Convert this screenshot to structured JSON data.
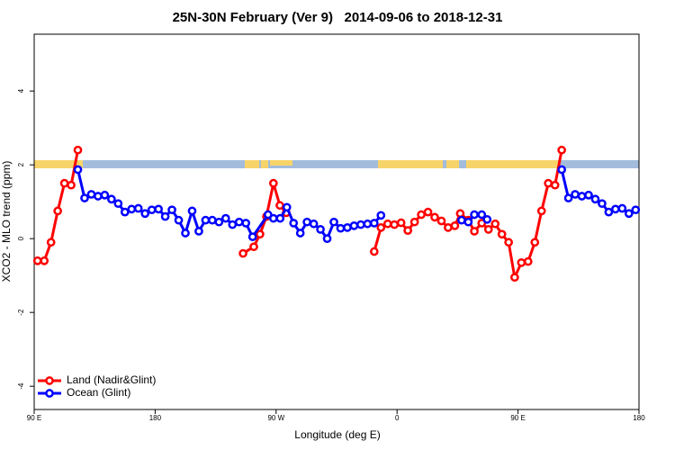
{
  "chart_data": {
    "type": "line",
    "title": "25N-30N February (Ver 9)   2014-09-06 to 2018-12-31",
    "x_label": "Longitude (deg E)",
    "y_label": "XCO2 - MLO trend (ppm)",
    "xlim": [
      90,
      540
    ],
    "ylim": [
      -4.63,
      5.54
    ],
    "xticks": [
      {
        "value": 90,
        "label": "90 E"
      },
      180,
      {
        "value": 270,
        "label": "90 W"
      },
      {
        "value": 360,
        "label": "0"
      },
      {
        "value": 450,
        "label": "90 E"
      },
      {
        "value": 540,
        "label": "180"
      }
    ],
    "yticks": [
      -4,
      -2,
      0,
      2,
      4
    ],
    "legend": "bottom-left",
    "series": [
      {
        "name": "Land (Nadir&Glint)",
        "color": "#ff0000",
        "x": [
          92.5,
          97.5,
          102.5,
          107.5,
          112.5,
          117.5,
          122.5,
          null,
          245.4,
          253.4,
          258,
          262.8,
          268,
          272.8,
          277.5,
          null,
          343,
          348,
          353,
          358,
          363,
          368,
          373,
          378,
          383,
          388,
          393,
          398,
          403,
          407,
          413,
          417.5,
          423,
          428,
          433,
          438,
          443,
          447.5,
          452.5,
          457.5,
          462.5,
          467.5,
          472.5,
          477.5,
          482.5
        ],
        "values": [
          -0.6,
          -0.6,
          -0.1,
          0.75,
          1.5,
          1.45,
          2.4,
          null,
          -0.4,
          -0.22,
          0.12,
          0.6,
          1.5,
          0.9,
          0.7,
          null,
          -0.35,
          0.3,
          0.4,
          0.38,
          0.43,
          0.22,
          0.45,
          0.65,
          0.72,
          0.58,
          0.48,
          0.3,
          0.35,
          0.68,
          0.5,
          0.2,
          0.42,
          0.25,
          0.4,
          0.12,
          -0.1,
          -1.05,
          -0.65,
          -0.62,
          -0.1,
          0.75,
          1.5,
          1.45,
          2.4
        ]
      },
      {
        "name": "Ocean (Glint)",
        "color": "#0000ff",
        "x": [
          122.5,
          127.5,
          132.5,
          137.5,
          142.5,
          147.5,
          152.5,
          157.5,
          162.5,
          167.5,
          172.5,
          177.5,
          182.5,
          187.5,
          192.5,
          197.5,
          202.5,
          207.5,
          212.5,
          217.5,
          222.5,
          227.5,
          232.5,
          237.5,
          242.5,
          247.5,
          252.5,
          264,
          268,
          273,
          278,
          283,
          288,
          293,
          298,
          303,
          308,
          313,
          318,
          323,
          328,
          333,
          338,
          343,
          348,
          null,
          408,
          413,
          417.5,
          423,
          427,
          null,
          482.5,
          487.5,
          492.5,
          497.5,
          502.5,
          507.5,
          512.5,
          517.5,
          522.5,
          527.5,
          532.5,
          537.5
        ],
        "values": [
          1.87,
          1.1,
          1.2,
          1.15,
          1.18,
          1.07,
          0.95,
          0.72,
          0.8,
          0.82,
          0.68,
          0.78,
          0.8,
          0.6,
          0.78,
          0.5,
          0.15,
          0.75,
          0.2,
          0.5,
          0.5,
          0.45,
          0.55,
          0.38,
          0.45,
          0.42,
          0.05,
          0.65,
          0.55,
          0.55,
          0.85,
          0.42,
          0.15,
          0.45,
          0.4,
          0.25,
          0.0,
          0.45,
          0.28,
          0.3,
          0.35,
          0.38,
          0.4,
          0.42,
          0.63,
          null,
          0.5,
          0.45,
          0.65,
          0.65,
          0.52,
          null,
          1.87,
          1.1,
          1.2,
          1.15,
          1.18,
          1.07,
          0.95,
          0.72,
          0.8,
          0.82,
          0.68,
          0.78
        ]
      }
    ]
  }
}
